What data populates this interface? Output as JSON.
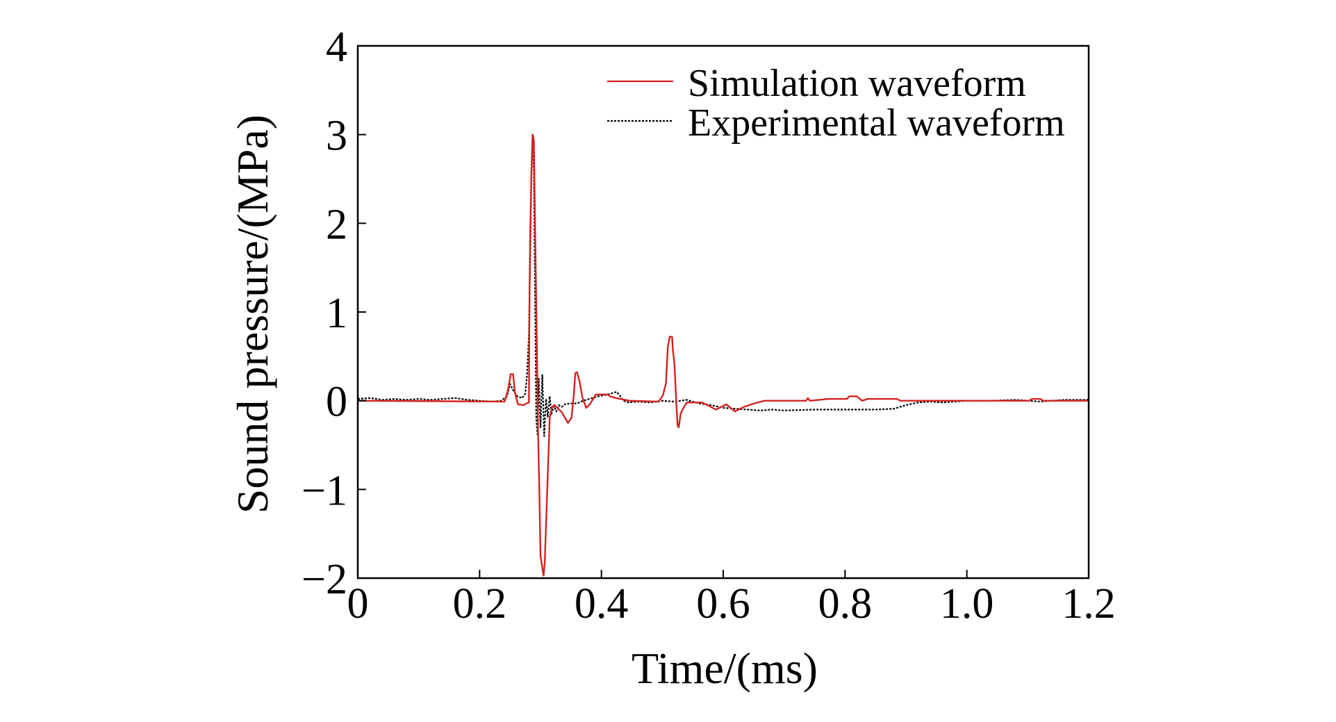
{
  "chart_data": {
    "type": "line",
    "title": "",
    "xlabel": "Time/(ms)",
    "ylabel": "Sound pressure/(MPa)",
    "xlim": [
      0,
      1.2
    ],
    "ylim": [
      -2,
      4
    ],
    "xticks": [
      0,
      0.2,
      0.4,
      0.6,
      0.8,
      1.0,
      1.2
    ],
    "xtick_labels": [
      "0",
      "0.2",
      "0.4",
      "0.6",
      "0.8",
      "1.0",
      "1.2"
    ],
    "yticks": [
      -2,
      -1,
      0,
      1,
      2,
      3,
      4
    ],
    "ytick_labels": [
      "−2",
      "−1",
      "0",
      "1",
      "2",
      "3",
      "4"
    ],
    "grid": false,
    "legend_position": "top-right",
    "series": [
      {
        "name": "Simulation waveform",
        "color": "#d42020",
        "style": "solid",
        "x": [
          0,
          0.241,
          0.247,
          0.251,
          0.255,
          0.258,
          0.263,
          0.272,
          0.277,
          0.281,
          0.282,
          0.283,
          0.285,
          0.287,
          0.289,
          0.291,
          0.293,
          0.296,
          0.298,
          0.3,
          0.304,
          0.305,
          0.307,
          0.31,
          0.313,
          0.315,
          0.319,
          0.323,
          0.335,
          0.345,
          0.351,
          0.355,
          0.357,
          0.36,
          0.364,
          0.369,
          0.375,
          0.381,
          0.391,
          0.411,
          0.414,
          0.424,
          0.446,
          0.494,
          0.501,
          0.506,
          0.509,
          0.512,
          0.516,
          0.517,
          0.52,
          0.523,
          0.525,
          0.527,
          0.53,
          0.534,
          0.54,
          0.554,
          0.565,
          0.577,
          0.588,
          0.605,
          0.619,
          0.634,
          0.651,
          0.668,
          0.736,
          0.739,
          0.742,
          0.773,
          0.803,
          0.807,
          0.819,
          0.828,
          0.837,
          0.885,
          0.891,
          1.102,
          1.107,
          1.121,
          1.125,
          1.2
        ],
        "y": [
          0,
          -0.01,
          0.13,
          0.3,
          0.3,
          0.09,
          -0.04,
          -0.05,
          -0.03,
          -0.02,
          1.22,
          1.85,
          2.55,
          3.0,
          2.94,
          2.0,
          1.06,
          -0.34,
          -0.97,
          -1.75,
          -1.93,
          -1.97,
          -1.83,
          -1.21,
          -0.62,
          -0.19,
          -0.07,
          -0.05,
          -0.13,
          -0.25,
          -0.19,
          0.09,
          0.31,
          0.32,
          0.22,
          0.03,
          -0.08,
          -0.04,
          0.07,
          0.07,
          0.05,
          0.03,
          0,
          -0.01,
          0.06,
          0.2,
          0.6,
          0.72,
          0.72,
          0.6,
          0.4,
          -0.03,
          -0.28,
          -0.3,
          -0.15,
          -0.09,
          -0.02,
          -0.02,
          -0.02,
          -0.06,
          -0.1,
          -0.04,
          -0.12,
          -0.07,
          -0.03,
          0,
          0,
          0.03,
          0,
          0.02,
          0.02,
          0.05,
          0.05,
          0,
          0.02,
          0.02,
          0,
          0,
          0.02,
          0.02,
          0,
          0
        ]
      },
      {
        "name": "Experimental waveform",
        "color": "#000000",
        "style": "dotted",
        "x": [
          0,
          0.02,
          0.04,
          0.06,
          0.08,
          0.1,
          0.12,
          0.14,
          0.16,
          0.18,
          0.2,
          0.22,
          0.235,
          0.245,
          0.25,
          0.255,
          0.262,
          0.27,
          0.275,
          0.278,
          0.281,
          0.283,
          0.285,
          0.287,
          0.289,
          0.291,
          0.293,
          0.295,
          0.297,
          0.3,
          0.303,
          0.306,
          0.309,
          0.312,
          0.315,
          0.318,
          0.322,
          0.326,
          0.33,
          0.335,
          0.34,
          0.35,
          0.36,
          0.37,
          0.38,
          0.395,
          0.41,
          0.425,
          0.43,
          0.436,
          0.445,
          0.46,
          0.48,
          0.5,
          0.52,
          0.54,
          0.56,
          0.58,
          0.6,
          0.62,
          0.64,
          0.66,
          0.68,
          0.7,
          0.75,
          0.8,
          0.85,
          0.88,
          0.9,
          0.92,
          0.94,
          0.96,
          0.98,
          1.0,
          1.04,
          1.08,
          1.12,
          1.16,
          1.2
        ],
        "y": [
          0.02,
          0.03,
          0.01,
          0.02,
          0.01,
          0.02,
          0.01,
          0.02,
          0.03,
          0.01,
          0.0,
          -0.01,
          0.0,
          0.05,
          0.19,
          0.12,
          0.05,
          0.03,
          0.08,
          0.3,
          0.75,
          1.6,
          2.6,
          3.0,
          2.6,
          1.2,
          -0.2,
          -0.38,
          0.25,
          -0.3,
          0.29,
          -0.4,
          0.02,
          -0.18,
          0.05,
          -0.15,
          -0.06,
          -0.12,
          -0.05,
          -0.07,
          -0.04,
          -0.03,
          -0.03,
          0.0,
          0.02,
          0.05,
          0.07,
          0.1,
          0.06,
          0.0,
          -0.02,
          -0.01,
          -0.02,
          0.0,
          -0.01,
          0.01,
          -0.03,
          -0.05,
          -0.08,
          -0.09,
          -0.1,
          -0.11,
          -0.1,
          -0.11,
          -0.1,
          -0.1,
          -0.1,
          -0.09,
          -0.05,
          -0.02,
          -0.01,
          -0.02,
          -0.01,
          0.0,
          0.0,
          0.01,
          -0.01,
          0.01,
          0.01
        ]
      }
    ]
  }
}
